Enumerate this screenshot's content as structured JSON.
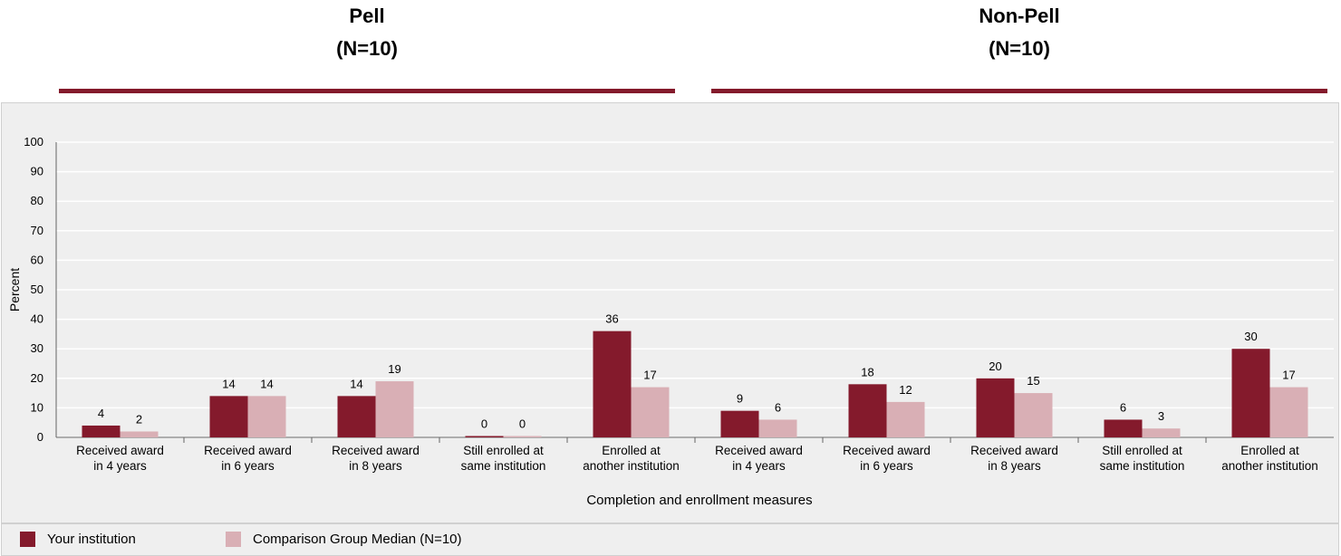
{
  "headers": {
    "pell": {
      "title": "Pell",
      "n": "(N=10)"
    },
    "nonpell": {
      "title": "Non-Pell",
      "n": "(N=10)"
    }
  },
  "colors": {
    "institution": "#841A2C",
    "comparison": "#D9AFB5",
    "rule": "#841A2C",
    "grid": "#ffffff",
    "panel": "#efefef"
  },
  "legend": {
    "institution": "Your institution",
    "comparison": "Comparison Group Median (N=10)"
  },
  "chart_data": {
    "type": "bar",
    "title": "",
    "xlabel": "Completion and enrollment measures",
    "ylabel": "Percent",
    "ylim": [
      0,
      100
    ],
    "yticks": [
      0,
      10,
      20,
      30,
      40,
      50,
      60,
      70,
      80,
      90,
      100
    ],
    "grid": true,
    "legend_position": "bottom",
    "groups": [
      "Pell",
      "Non-Pell"
    ],
    "categories": [
      [
        "Received award",
        "in 4 years"
      ],
      [
        "Received award",
        "in 6 years"
      ],
      [
        "Received award",
        "in 8 years"
      ],
      [
        "Still enrolled at",
        "same institution"
      ],
      [
        "Enrolled at",
        "another institution"
      ],
      [
        "Received award",
        "in 4 years"
      ],
      [
        "Received award",
        "in 6 years"
      ],
      [
        "Received award",
        "in 8 years"
      ],
      [
        "Still enrolled at",
        "same institution"
      ],
      [
        "Enrolled at",
        "another institution"
      ]
    ],
    "series": [
      {
        "name": "Your institution",
        "values": [
          4,
          14,
          14,
          0,
          36,
          9,
          18,
          20,
          6,
          30
        ]
      },
      {
        "name": "Comparison Group Median (N=10)",
        "values": [
          2,
          14,
          19,
          0,
          17,
          6,
          12,
          15,
          3,
          17
        ]
      }
    ]
  }
}
